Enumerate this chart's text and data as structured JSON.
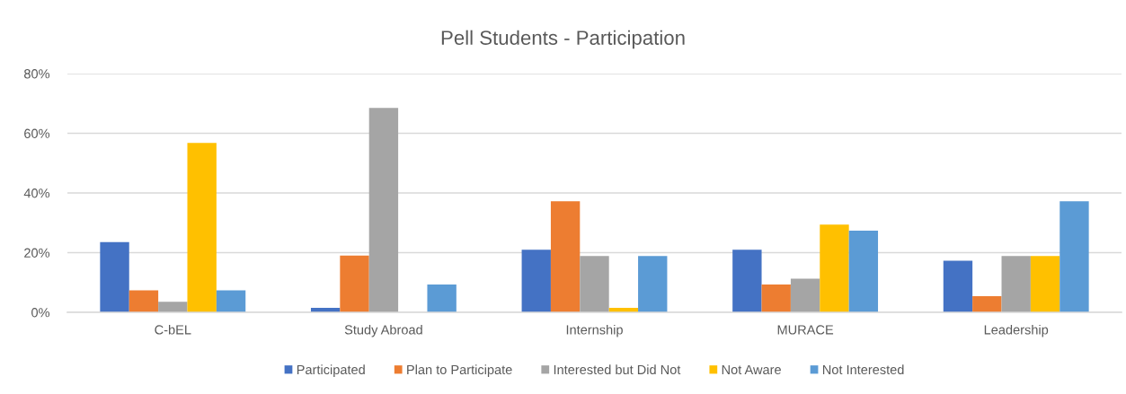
{
  "chart_data": {
    "type": "bar",
    "title": "Pell Students - Participation",
    "categories": [
      "C-bEL",
      "Study Abroad",
      "Internship",
      "MURACE",
      "Leadership"
    ],
    "series": [
      {
        "name": "Participated",
        "color": "#4472c4",
        "values": [
          23.5,
          1.5,
          21,
          21,
          17.3
        ]
      },
      {
        "name": "Plan to Participate",
        "color": "#ed7d31",
        "values": [
          7.4,
          19,
          37.2,
          9.3,
          5.4
        ]
      },
      {
        "name": "Interested but Did Not",
        "color": "#a5a5a5",
        "values": [
          3.5,
          68.5,
          18.9,
          11.3,
          18.9
        ]
      },
      {
        "name": "Not Aware",
        "color": "#ffc000",
        "values": [
          56.8,
          null,
          1.5,
          29.4,
          18.9
        ]
      },
      {
        "name": "Not Interested",
        "color": "#5b9bd5",
        "values": [
          7.4,
          9.3,
          18.9,
          27.4,
          37.2
        ]
      }
    ],
    "ylim": [
      0,
      80
    ],
    "yticks": [
      {
        "value": 0,
        "label": "0%"
      },
      {
        "value": 20,
        "label": "20%"
      },
      {
        "value": 40,
        "label": "40%"
      },
      {
        "value": 60,
        "label": "60%"
      },
      {
        "value": 80,
        "label": "80%"
      }
    ],
    "grid": "y",
    "legend": "bottom"
  }
}
